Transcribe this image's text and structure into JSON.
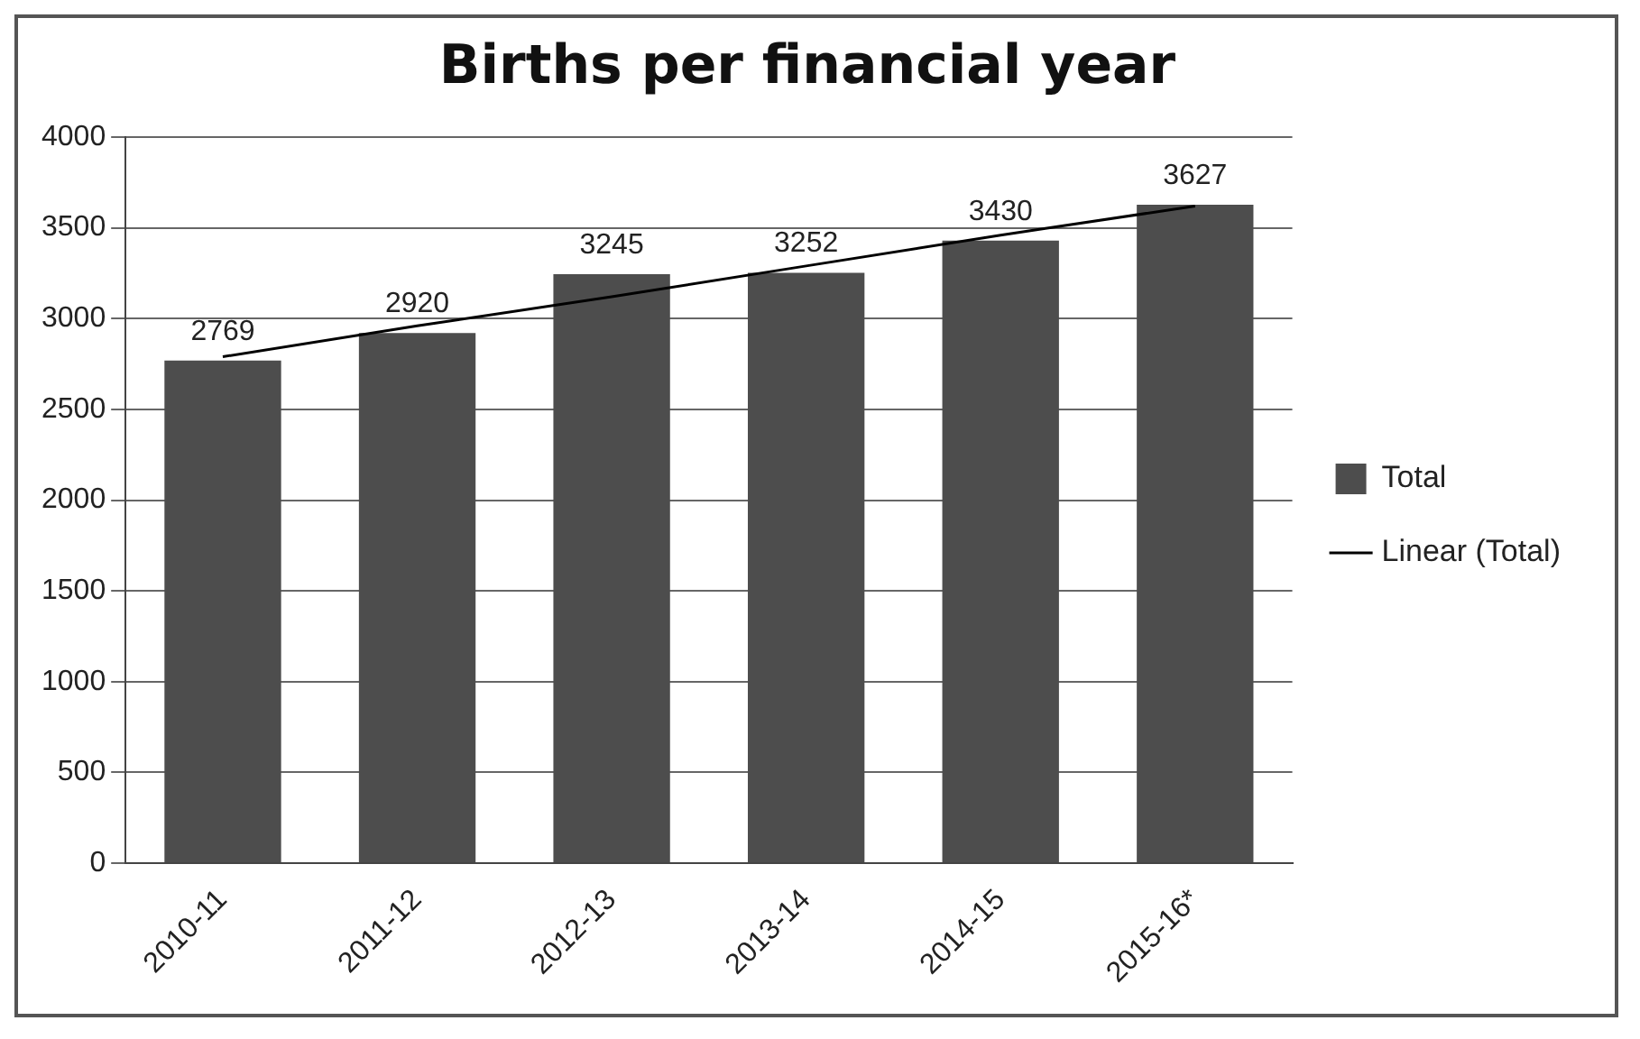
{
  "chart_data": {
    "type": "bar",
    "title": "Births per financial year",
    "categories": [
      "2010-11",
      "2011-12",
      "2012-13",
      "2013-14",
      "2014-15",
      "2015-16*"
    ],
    "series": [
      {
        "name": "Total",
        "color": "#4d4d4d",
        "values": [
          2769,
          2920,
          3245,
          3252,
          3430,
          3627
        ],
        "value_labels": [
          "2769",
          "2920",
          "3245",
          "3252",
          "3430",
          "3627"
        ]
      },
      {
        "name": "Linear (Total)",
        "type": "line",
        "color": "#000000",
        "values": [
          2790,
          2960,
          3120,
          3290,
          3460,
          3620
        ]
      }
    ],
    "ylim": [
      0,
      4000
    ],
    "yticks": [
      0,
      500,
      1000,
      1500,
      2000,
      2500,
      3000,
      3500,
      4000
    ],
    "grid": "y",
    "legend": "right",
    "marker": "none",
    "line_style": "solid"
  }
}
